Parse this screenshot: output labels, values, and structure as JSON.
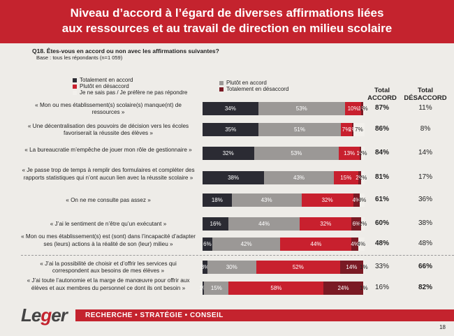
{
  "header": {
    "title_line1": "Niveau d’accord à l’égard de diverses affirmations liées",
    "title_line2": "aux ressources et au travail de direction en milieu scolaire"
  },
  "question": "Q18. Êtes-vous en accord ou non avec les affirmations suivantes?",
  "base": "Base : tous les répondants (n=1 059)",
  "legend": {
    "totally_agree": "Totalement en accord",
    "somewhat_disagree": "Plutôt en désaccord",
    "dont_know": "Je ne sais pas / Je préfère ne pas répondre",
    "somewhat_agree": "Plutôt en accord",
    "totally_disagree": "Totalement en désaccord"
  },
  "columns": {
    "total_accord": "Total ACCORD",
    "total_desaccord": "Total DÉSACCORD"
  },
  "colors": {
    "totally_agree": "#2b2b33",
    "somewhat_agree": "#9b9896",
    "somewhat_disagree": "#c8202e",
    "totally_disagree": "#7a1a24",
    "dont_know": "#f2f0ec",
    "brand_red": "#c4232e"
  },
  "chart_data": {
    "type": "bar",
    "orientation": "horizontal-stacked",
    "series": [
      {
        "name": "Totalement en accord",
        "values": [
          34,
          35,
          32,
          38,
          18,
          16,
          6,
          3,
          1
        ]
      },
      {
        "name": "Plutôt en accord",
        "values": [
          53,
          51,
          53,
          43,
          43,
          44,
          42,
          30,
          15
        ]
      },
      {
        "name": "Plutôt en désaccord",
        "values": [
          10,
          7,
          13,
          15,
          32,
          32,
          44,
          52,
          58
        ]
      },
      {
        "name": "Totalement en désaccord",
        "values": [
          1,
          1,
          1,
          2,
          4,
          6,
          4,
          14,
          24
        ]
      },
      {
        "name": "Je ne sais pas / Je préfère ne pas répondre",
        "values": [
          1,
          7,
          2,
          2,
          3,
          2,
          4,
          1,
          1
        ]
      }
    ],
    "rows": [
      {
        "label": "« Mon ou mes établissement(s) scolaire(s) manque(nt) de ressources »",
        "total_accord": "87%",
        "total_desaccord": "11%",
        "accord_bold": true
      },
      {
        "label": "« Une décentralisation des pouvoirs de décision vers les écoles favoriserait la réussite des élèves »",
        "total_accord": "86%",
        "total_desaccord": "8%",
        "accord_bold": true
      },
      {
        "label": "« La bureaucratie m’empêche de jouer mon rôle de gestionnaire »",
        "total_accord": "84%",
        "total_desaccord": "14%",
        "accord_bold": true
      },
      {
        "label": "« Je passe trop de temps à remplir des formulaires et compléter des rapports statistiques qui n’ont aucun lien avec la réussite scolaire »",
        "total_accord": "81%",
        "total_desaccord": "17%",
        "accord_bold": true
      },
      {
        "label": "« On ne me consulte pas assez »",
        "total_accord": "61%",
        "total_desaccord": "36%",
        "accord_bold": true
      },
      {
        "label": "« J’ai le sentiment de n’être qu’un exécutant »",
        "total_accord": "60%",
        "total_desaccord": "38%",
        "accord_bold": true
      },
      {
        "label": "« Mon ou mes établissement(s) est (sont) dans l’incapacité d’adapter ses (leurs) actions à la réalité de son (leur) milieu »",
        "total_accord": "48%",
        "total_desaccord": "48%",
        "accord_bold": true
      },
      {
        "label": "« J’ai la possibilité de choisir et d’offrir les services qui correspondent aux besoins de mes élèves »",
        "total_accord": "33%",
        "total_desaccord": "66%",
        "accord_bold": false
      },
      {
        "label": "« J’ai toute l’autonomie et la marge de manœuvre pour offrir aux élèves et aux membres du personnel ce dont ils ont besoin »",
        "total_accord": "16%",
        "total_desaccord": "82%",
        "accord_bold": false
      }
    ],
    "segment_labels": [
      [
        "34%",
        "53%",
        "10%",
        "1%",
        "1%"
      ],
      [
        "35%",
        "51%",
        "7%",
        "1%",
        "7%"
      ],
      [
        "32%",
        "53%",
        "13%",
        "1%",
        "2%"
      ],
      [
        "38%",
        "43%",
        "15%",
        "2%",
        "2%"
      ],
      [
        "18%",
        "43%",
        "32%",
        "4%",
        "3%"
      ],
      [
        "16%",
        "44%",
        "32%",
        "6%",
        "2%"
      ],
      [
        "6%",
        "42%",
        "44%",
        "4%",
        "4%"
      ],
      [
        "3%",
        "30%",
        "52%",
        "14%",
        "1%"
      ],
      [
        "1%",
        "15%",
        "58%",
        "24%",
        "1%"
      ]
    ]
  },
  "footer": {
    "logo_prefix": "Le",
    "logo_g": "g",
    "logo_suffix": "er",
    "tagline": "RECHERCHE • STRATÉGIE • CONSEIL",
    "page_number": "18"
  }
}
